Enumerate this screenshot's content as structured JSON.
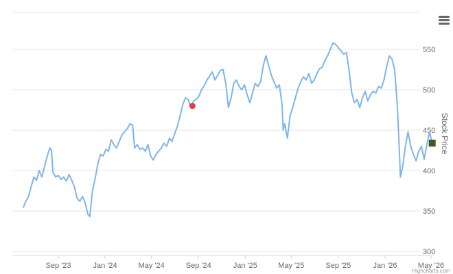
{
  "chart_data": {
    "type": "line",
    "title": "",
    "xlabel": "",
    "ylabel": "Stock Price",
    "ylim": [
      300,
      570
    ],
    "y_ticks": [
      "300",
      "350",
      "400",
      "450",
      "500",
      "550"
    ],
    "x_ticks": [
      {
        "label": "Sep '23",
        "date": "2023-09-01"
      },
      {
        "label": "Jan '24",
        "date": "2024-01-01"
      },
      {
        "label": "May '24",
        "date": "2024-05-01"
      },
      {
        "label": "Sep '24",
        "date": "2024-09-01"
      },
      {
        "label": "Jan '25",
        "date": "2025-01-01"
      },
      {
        "label": "May '25",
        "date": "2025-05-01"
      },
      {
        "label": "Sep '25",
        "date": "2025-09-01"
      },
      {
        "label": "Jan '26",
        "date": "2026-01-01"
      },
      {
        "label": "May '26",
        "date": "2026-05-01"
      }
    ],
    "grid": true,
    "series": [
      {
        "color": "#7cb5ec",
        "points": [
          [
            "2023-06-01",
            354
          ],
          [
            "2023-06-08",
            362
          ],
          [
            "2023-06-15",
            368
          ],
          [
            "2023-06-22",
            380
          ],
          [
            "2023-06-29",
            392
          ],
          [
            "2023-07-06",
            388
          ],
          [
            "2023-07-13",
            400
          ],
          [
            "2023-07-20",
            392
          ],
          [
            "2023-07-27",
            405
          ],
          [
            "2023-08-03",
            418
          ],
          [
            "2023-08-10",
            428
          ],
          [
            "2023-08-14",
            425
          ],
          [
            "2023-08-18",
            398
          ],
          [
            "2023-08-25",
            392
          ],
          [
            "2023-09-01",
            394
          ],
          [
            "2023-09-08",
            389
          ],
          [
            "2023-09-15",
            392
          ],
          [
            "2023-09-22",
            387
          ],
          [
            "2023-09-29",
            395
          ],
          [
            "2023-10-06",
            388
          ],
          [
            "2023-10-13",
            380
          ],
          [
            "2023-10-20",
            366
          ],
          [
            "2023-10-27",
            362
          ],
          [
            "2023-11-03",
            368
          ],
          [
            "2023-11-10",
            360
          ],
          [
            "2023-11-17",
            346
          ],
          [
            "2023-11-22",
            343
          ],
          [
            "2023-11-29",
            375
          ],
          [
            "2023-12-06",
            390
          ],
          [
            "2023-12-13",
            408
          ],
          [
            "2023-12-20",
            420
          ],
          [
            "2023-12-27",
            418
          ],
          [
            "2024-01-03",
            426
          ],
          [
            "2024-01-10",
            424
          ],
          [
            "2024-01-17",
            438
          ],
          [
            "2024-01-24",
            432
          ],
          [
            "2024-01-31",
            428
          ],
          [
            "2024-02-07",
            436
          ],
          [
            "2024-02-14",
            444
          ],
          [
            "2024-02-21",
            448
          ],
          [
            "2024-02-28",
            452
          ],
          [
            "2024-03-06",
            458
          ],
          [
            "2024-03-13",
            456
          ],
          [
            "2024-03-18",
            428
          ],
          [
            "2024-03-25",
            432
          ],
          [
            "2024-04-01",
            426
          ],
          [
            "2024-04-08",
            428
          ],
          [
            "2024-04-15",
            424
          ],
          [
            "2024-04-22",
            432
          ],
          [
            "2024-04-29",
            418
          ],
          [
            "2024-05-06",
            413
          ],
          [
            "2024-05-13",
            420
          ],
          [
            "2024-05-20",
            424
          ],
          [
            "2024-05-27",
            428
          ],
          [
            "2024-06-03",
            434
          ],
          [
            "2024-06-10",
            430
          ],
          [
            "2024-06-17",
            440
          ],
          [
            "2024-06-24",
            436
          ],
          [
            "2024-07-01",
            446
          ],
          [
            "2024-07-08",
            455
          ],
          [
            "2024-07-15",
            468
          ],
          [
            "2024-07-22",
            482
          ],
          [
            "2024-07-29",
            490
          ],
          [
            "2024-08-05",
            488
          ],
          [
            "2024-08-12",
            478
          ],
          [
            "2024-08-19",
            486
          ],
          [
            "2024-08-26",
            488
          ],
          [
            "2024-09-02",
            492
          ],
          [
            "2024-09-09",
            500
          ],
          [
            "2024-09-16",
            505
          ],
          [
            "2024-09-23",
            512
          ],
          [
            "2024-09-30",
            517
          ],
          [
            "2024-10-07",
            522
          ],
          [
            "2024-10-14",
            512
          ],
          [
            "2024-10-21",
            518
          ],
          [
            "2024-10-28",
            524
          ],
          [
            "2024-11-04",
            525
          ],
          [
            "2024-11-11",
            508
          ],
          [
            "2024-11-18",
            478
          ],
          [
            "2024-11-25",
            490
          ],
          [
            "2024-12-02",
            508
          ],
          [
            "2024-12-09",
            512
          ],
          [
            "2024-12-16",
            504
          ],
          [
            "2024-12-23",
            500
          ],
          [
            "2024-12-30",
            506
          ],
          [
            "2025-01-06",
            494
          ],
          [
            "2025-01-13",
            484
          ],
          [
            "2025-01-20",
            496
          ],
          [
            "2025-01-27",
            508
          ],
          [
            "2025-02-03",
            504
          ],
          [
            "2025-02-10",
            510
          ],
          [
            "2025-02-17",
            530
          ],
          [
            "2025-02-24",
            542
          ],
          [
            "2025-03-03",
            530
          ],
          [
            "2025-03-10",
            518
          ],
          [
            "2025-03-17",
            510
          ],
          [
            "2025-03-24",
            502
          ],
          [
            "2025-03-31",
            506
          ],
          [
            "2025-04-07",
            482
          ],
          [
            "2025-04-10",
            450
          ],
          [
            "2025-04-14",
            458
          ],
          [
            "2025-04-21",
            440
          ],
          [
            "2025-04-28",
            468
          ],
          [
            "2025-05-05",
            478
          ],
          [
            "2025-05-12",
            490
          ],
          [
            "2025-05-19",
            502
          ],
          [
            "2025-05-26",
            510
          ],
          [
            "2025-06-02",
            516
          ],
          [
            "2025-06-09",
            512
          ],
          [
            "2025-06-16",
            520
          ],
          [
            "2025-06-23",
            508
          ],
          [
            "2025-06-30",
            512
          ],
          [
            "2025-07-07",
            520
          ],
          [
            "2025-07-14",
            526
          ],
          [
            "2025-07-21",
            528
          ],
          [
            "2025-07-28",
            536
          ],
          [
            "2025-08-04",
            542
          ],
          [
            "2025-08-11",
            550
          ],
          [
            "2025-08-18",
            558
          ],
          [
            "2025-08-25",
            556
          ],
          [
            "2025-09-01",
            552
          ],
          [
            "2025-09-08",
            548
          ],
          [
            "2025-09-15",
            544
          ],
          [
            "2025-09-22",
            546
          ],
          [
            "2025-09-29",
            524
          ],
          [
            "2025-10-06",
            496
          ],
          [
            "2025-10-13",
            484
          ],
          [
            "2025-10-20",
            488
          ],
          [
            "2025-10-27",
            478
          ],
          [
            "2025-11-03",
            490
          ],
          [
            "2025-11-10",
            498
          ],
          [
            "2025-11-17",
            486
          ],
          [
            "2025-11-24",
            494
          ],
          [
            "2025-12-01",
            498
          ],
          [
            "2025-12-08",
            496
          ],
          [
            "2025-12-15",
            504
          ],
          [
            "2025-12-22",
            502
          ],
          [
            "2025-12-29",
            512
          ],
          [
            "2026-01-05",
            528
          ],
          [
            "2026-01-12",
            542
          ],
          [
            "2026-01-19",
            538
          ],
          [
            "2026-01-26",
            525
          ],
          [
            "2026-02-02",
            480
          ],
          [
            "2026-02-06",
            440
          ],
          [
            "2026-02-10",
            392
          ],
          [
            "2026-02-16",
            405
          ],
          [
            "2026-02-23",
            430
          ],
          [
            "2026-03-02",
            448
          ],
          [
            "2026-03-09",
            430
          ],
          [
            "2026-03-16",
            420
          ],
          [
            "2026-03-23",
            412
          ],
          [
            "2026-03-30",
            424
          ],
          [
            "2026-04-06",
            430
          ],
          [
            "2026-04-13",
            414
          ],
          [
            "2026-04-20",
            432
          ],
          [
            "2026-04-27",
            448
          ],
          [
            "2026-05-04",
            434
          ]
        ]
      }
    ],
    "markers": [
      {
        "date": "2024-08-16",
        "value": 480,
        "color": "#e14040",
        "shape": "circle"
      },
      {
        "date": "2026-05-04",
        "value": 434,
        "color": "#3b5a24",
        "shape": "square"
      }
    ],
    "credit": "Highcharts.com"
  }
}
